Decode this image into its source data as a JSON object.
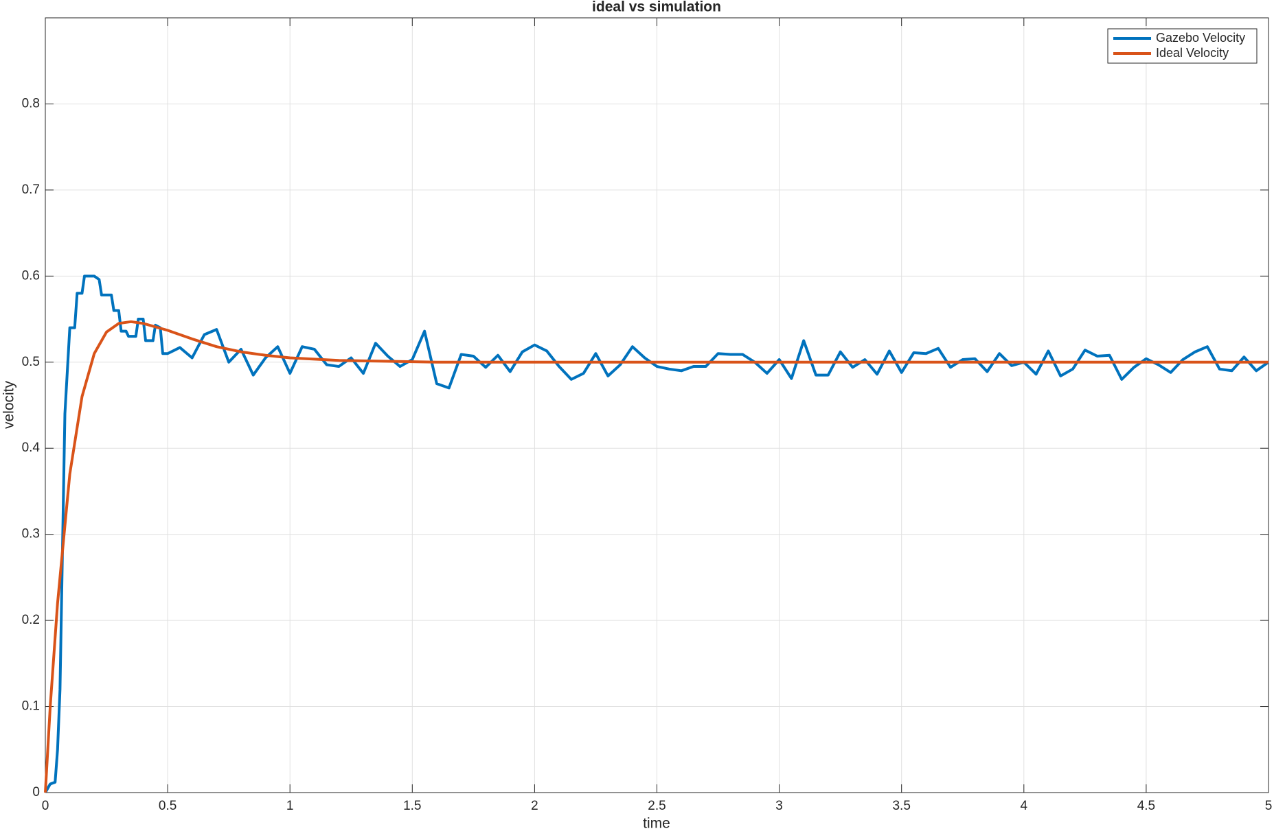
{
  "chart_data": {
    "type": "line",
    "title": "ideal vs simulation",
    "xlabel": "time",
    "ylabel": "velocity",
    "xlim": [
      0,
      5
    ],
    "ylim": [
      0,
      0.9
    ],
    "xticks": [
      0,
      0.5,
      1,
      1.5,
      2,
      2.5,
      3,
      3.5,
      4,
      4.5,
      5
    ],
    "yticks": [
      0,
      0.1,
      0.2,
      0.3,
      0.4,
      0.5,
      0.6,
      0.7,
      0.8
    ],
    "grid": true,
    "legend": "upper-right",
    "series": [
      {
        "name": "Gazebo Velocity",
        "color": "#0072BD",
        "x": [
          0,
          0.02,
          0.04,
          0.05,
          0.06,
          0.08,
          0.1,
          0.12,
          0.13,
          0.15,
          0.16,
          0.2,
          0.22,
          0.23,
          0.27,
          0.28,
          0.3,
          0.31,
          0.33,
          0.34,
          0.37,
          0.38,
          0.4,
          0.41,
          0.44,
          0.45,
          0.47,
          0.48,
          0.5,
          0.55,
          0.6,
          0.65,
          0.7,
          0.75,
          0.8,
          0.85,
          0.9,
          0.95,
          1,
          1.05,
          1.1,
          1.15,
          1.2,
          1.25,
          1.3,
          1.35,
          1.4,
          1.45,
          1.5,
          1.55,
          1.6,
          1.65,
          1.7,
          1.75,
          1.8,
          1.85,
          1.9,
          1.95,
          2,
          2.05,
          2.1,
          2.15,
          2.2,
          2.25,
          2.3,
          2.35,
          2.4,
          2.45,
          2.5,
          2.55,
          2.6,
          2.65,
          2.7,
          2.75,
          2.8,
          2.85,
          2.9,
          2.95,
          3,
          3.05,
          3.1,
          3.15,
          3.2,
          3.25,
          3.3,
          3.35,
          3.4,
          3.45,
          3.5,
          3.55,
          3.6,
          3.65,
          3.7,
          3.75,
          3.8,
          3.85,
          3.9,
          3.95,
          4,
          4.05,
          4.1,
          4.15,
          4.2,
          4.25,
          4.3,
          4.35,
          4.4,
          4.45,
          4.5,
          4.55,
          4.6,
          4.65,
          4.7,
          4.75,
          4.8,
          4.85,
          4.9,
          4.95,
          5
        ],
        "values": [
          0,
          0.01,
          0.012,
          0.05,
          0.12,
          0.44,
          0.54,
          0.54,
          0.58,
          0.58,
          0.6,
          0.6,
          0.596,
          0.578,
          0.578,
          0.56,
          0.56,
          0.536,
          0.536,
          0.53,
          0.53,
          0.55,
          0.55,
          0.525,
          0.525,
          0.543,
          0.54,
          0.51,
          0.51,
          0.517,
          0.505,
          0.532,
          0.538,
          0.5,
          0.515,
          0.485,
          0.505,
          0.518,
          0.487,
          0.518,
          0.515,
          0.497,
          0.495,
          0.505,
          0.487,
          0.522,
          0.507,
          0.495,
          0.503,
          0.536,
          0.475,
          0.47,
          0.509,
          0.507,
          0.494,
          0.508,
          0.489,
          0.512,
          0.52,
          0.513,
          0.495,
          0.48,
          0.487,
          0.51,
          0.484,
          0.497,
          0.518,
          0.505,
          0.495,
          0.492,
          0.49,
          0.495,
          0.495,
          0.51,
          0.509,
          0.509,
          0.5,
          0.487,
          0.503,
          0.481,
          0.525,
          0.485,
          0.485,
          0.512,
          0.494,
          0.503,
          0.486,
          0.513,
          0.488,
          0.511,
          0.51,
          0.516,
          0.494,
          0.503,
          0.504,
          0.489,
          0.51,
          0.496,
          0.5,
          0.486,
          0.513,
          0.484,
          0.492,
          0.514,
          0.507,
          0.508,
          0.48,
          0.494,
          0.504,
          0.497,
          0.488,
          0.503,
          0.512,
          0.518,
          0.492,
          0.49,
          0.506,
          0.49,
          0.5
        ]
      },
      {
        "name": "Ideal Velocity",
        "color": "#D95319",
        "x": [
          0,
          0.02,
          0.05,
          0.08,
          0.1,
          0.15,
          0.2,
          0.25,
          0.3,
          0.35,
          0.4,
          0.5,
          0.6,
          0.7,
          0.8,
          0.9,
          1,
          1.2,
          1.4,
          1.6,
          2,
          3,
          4,
          5
        ],
        "values": [
          0,
          0.1,
          0.22,
          0.31,
          0.37,
          0.46,
          0.51,
          0.535,
          0.545,
          0.547,
          0.545,
          0.537,
          0.527,
          0.518,
          0.512,
          0.508,
          0.505,
          0.502,
          0.501,
          0.5,
          0.5,
          0.5,
          0.5,
          0.5
        ]
      }
    ]
  }
}
